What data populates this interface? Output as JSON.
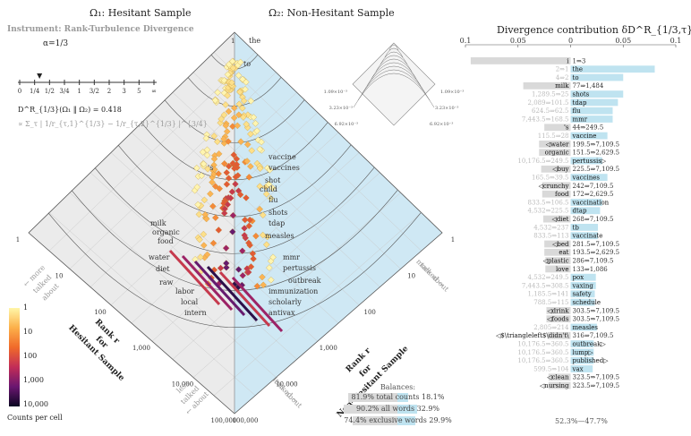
{
  "left_title": "Ω₁: Hesitant Sample",
  "right_title": "Ω₂: Non-Hesitant Sample",
  "instrument": "Instrument: Rank-Turbulence Divergence",
  "alpha_label": "α=1/3",
  "alpha_ticks": [
    "0",
    "1/4",
    "1/2",
    "3/4",
    "1",
    "3/2",
    "2",
    "3",
    "5",
    "∞"
  ],
  "divergence_value": "D^R_{1/3}(Ω₁ ‖ Ω₂) = 0.418",
  "formula": "∝ Σ_τ | 1/r_{τ,1}^{1/3} − 1/r_{τ,2}^{1/3} |^{3/4}",
  "diamond_axis": {
    "left_label_lines": [
      "Rank r",
      "for",
      "Hesitant Sample"
    ],
    "right_label_lines": [
      "Rank r",
      "for",
      "Non-Hesitant Sample"
    ],
    "ticks": [
      "1",
      "10",
      "100",
      "1,000",
      "10,000",
      "100,000"
    ],
    "left_arrow_lines": [
      "← more",
      "talked",
      "about"
    ],
    "right_arrow_lines": [
      "more",
      "talked →",
      "about"
    ],
    "less_left_lines": [
      "less",
      "talked",
      "← about"
    ],
    "less_right_lines": [
      "less",
      "talked →",
      "about"
    ]
  },
  "diamond_words_left": [
    "milk",
    "organic",
    "food",
    "water",
    "diet",
    "raw",
    "labor",
    "local",
    "intern",
    "'s"
  ],
  "diamond_words_right": [
    "the",
    "to",
    "vaccine",
    "vaccines",
    "shot",
    "flu",
    "shots",
    "tdap",
    "measles",
    "mmr",
    "pertussis",
    "outbreak",
    "immunization",
    "scholarly",
    "antivax",
    "child"
  ],
  "colorbar": {
    "ticks": [
      "1",
      "10",
      "100",
      "1,000",
      "10,000"
    ],
    "label": "Counts per cell"
  },
  "inset_ticks_left": [
    "1.09×10⁻³",
    "3.23×10⁻³",
    "6.92×10⁻³"
  ],
  "inset_ticks_right": [
    "1.09×10⁻³",
    "3.23×10⁻³",
    "6.92×10⁻³"
  ],
  "balances": {
    "title": "Balances:",
    "rows": [
      {
        "text": "81.9% total counts 18.1%",
        "left": 81.9,
        "right": 18.1
      },
      {
        "text": "90.2% all words 32.9%",
        "left": 90.2,
        "right": 32.9
      },
      {
        "text": "74.4% exclusive words 29.9%",
        "left": 74.4,
        "right": 29.9
      }
    ]
  },
  "chart_data": {
    "type": "bar",
    "title": "Divergence contribution δD^R_{1/3,τ}(%)",
    "xlim": [
      -0.1,
      0.1
    ],
    "ticks": [
      -0.1,
      -0.05,
      0,
      0.05,
      0.1
    ],
    "tick_labels": [
      "0.1",
      "0.05",
      "0",
      "0.05",
      "0.1"
    ],
    "footer": "52.3%—47.7%",
    "colors": {
      "left": "#d9d9d9",
      "right": "#bfe3f0"
    },
    "rows": [
      {
        "word": "i",
        "side": "left",
        "value": -0.095,
        "rank_text": "1⇒3",
        "exclusive": false
      },
      {
        "word": "the",
        "side": "right",
        "value": 0.08,
        "rank_text": "2⇒1",
        "exclusive": false
      },
      {
        "word": "to",
        "side": "right",
        "value": 0.05,
        "rank_text": "4⇒2",
        "exclusive": false
      },
      {
        "word": "milk",
        "side": "left",
        "value": -0.045,
        "rank_text": "77⇒1,484",
        "exclusive": false
      },
      {
        "word": "shots",
        "side": "right",
        "value": 0.05,
        "rank_text": "1,289.5⇒25",
        "exclusive": false
      },
      {
        "word": "tdap",
        "side": "right",
        "value": 0.045,
        "rank_text": "2,089⇒101.5",
        "exclusive": false
      },
      {
        "word": "flu",
        "side": "right",
        "value": 0.04,
        "rank_text": "624.5⇒62.5",
        "exclusive": false
      },
      {
        "word": "mmr",
        "side": "right",
        "value": 0.04,
        "rank_text": "7,443.5⇒168.5",
        "exclusive": false
      },
      {
        "word": "'s",
        "side": "left",
        "value": -0.025,
        "rank_text": "44⇒249.5",
        "exclusive": false
      },
      {
        "word": "vaccine",
        "side": "right",
        "value": 0.035,
        "rank_text": "115.5⇒28",
        "exclusive": false
      },
      {
        "word": "water",
        "side": "left",
        "value": -0.03,
        "rank_text": "199.5⇒7,109.5",
        "exclusive": true
      },
      {
        "word": "organic",
        "side": "left",
        "value": -0.03,
        "rank_text": "151.5⇒2,629.5",
        "exclusive": false
      },
      {
        "word": "pertussis",
        "side": "right",
        "value": 0.03,
        "rank_text": "10,176.5⇒249.5",
        "exclusive": true
      },
      {
        "word": "buy",
        "side": "left",
        "value": -0.028,
        "rank_text": "225.5⇒7,109.5",
        "exclusive": true
      },
      {
        "word": "vaccines",
        "side": "right",
        "value": 0.035,
        "rank_text": "165.5⇒39.5",
        "exclusive": false
      },
      {
        "word": "crunchy",
        "side": "left",
        "value": -0.027,
        "rank_text": "242⇒7,109.5",
        "exclusive": true
      },
      {
        "word": "food",
        "side": "left",
        "value": -0.027,
        "rank_text": "172⇒2,629.5",
        "exclusive": false
      },
      {
        "word": "vaccination",
        "side": "right",
        "value": 0.03,
        "rank_text": "833.5⇒106.5",
        "exclusive": false
      },
      {
        "word": "dtap",
        "side": "right",
        "value": 0.028,
        "rank_text": "4,532⇒225.5",
        "exclusive": false
      },
      {
        "word": "diet",
        "side": "left",
        "value": -0.026,
        "rank_text": "268⇒7,109.5",
        "exclusive": true
      },
      {
        "word": "tb",
        "side": "right",
        "value": 0.026,
        "rank_text": "4,532⇒237",
        "exclusive": false
      },
      {
        "word": "vaccinate",
        "side": "right",
        "value": 0.026,
        "rank_text": "833.5⇒113",
        "exclusive": false
      },
      {
        "word": "bed",
        "side": "left",
        "value": -0.025,
        "rank_text": "281.5⇒7,109.5",
        "exclusive": true
      },
      {
        "word": "eat",
        "side": "left",
        "value": -0.025,
        "rank_text": "193.5⇒2,629.5",
        "exclusive": false
      },
      {
        "word": "plastic",
        "side": "left",
        "value": -0.024,
        "rank_text": "286⇒7,109.5",
        "exclusive": true
      },
      {
        "word": "love",
        "side": "left",
        "value": -0.024,
        "rank_text": "133⇒1,086",
        "exclusive": false
      },
      {
        "word": "pox",
        "side": "right",
        "value": 0.024,
        "rank_text": "4,532⇒249.5",
        "exclusive": false
      },
      {
        "word": "vaxing",
        "side": "right",
        "value": 0.024,
        "rank_text": "7,443.5⇒308.5",
        "exclusive": false
      },
      {
        "word": "safety",
        "side": "right",
        "value": 0.023,
        "rank_text": "1,185.5⇒141",
        "exclusive": false
      },
      {
        "word": "schedule",
        "side": "right",
        "value": 0.023,
        "rank_text": "788.5⇒115",
        "exclusive": false
      },
      {
        "word": "drink",
        "side": "left",
        "value": -0.023,
        "rank_text": "303.5⇒7,109.5",
        "exclusive": true
      },
      {
        "word": "foods",
        "side": "left",
        "value": -0.023,
        "rank_text": "303.5⇒7,109.5",
        "exclusive": true
      },
      {
        "word": "measles",
        "side": "right",
        "value": 0.025,
        "rank_text": "2,805⇒214",
        "exclusive": false
      },
      {
        "word": "$\\triangleleft$\\didn't\\",
        "side": "left",
        "value": -0.022,
        "rank_text": "316⇒7,109.5",
        "exclusive": true
      },
      {
        "word": "outbreak",
        "side": "right",
        "value": 0.022,
        "rank_text": "10,176.5⇒360.5",
        "exclusive": true
      },
      {
        "word": "lump",
        "side": "right",
        "value": 0.022,
        "rank_text": "10,176.5⇒360.5",
        "exclusive": true
      },
      {
        "word": "published",
        "side": "right",
        "value": 0.022,
        "rank_text": "10,176.5⇒360.5",
        "exclusive": true
      },
      {
        "word": "vax",
        "side": "right",
        "value": 0.021,
        "rank_text": "599.5⇒104",
        "exclusive": false
      },
      {
        "word": "clean",
        "side": "left",
        "value": -0.021,
        "rank_text": "323.5⇒7,109.5",
        "exclusive": true
      },
      {
        "word": "nursing",
        "side": "left",
        "value": -0.021,
        "rank_text": "323.5⇒7,109.5",
        "exclusive": true
      }
    ]
  }
}
